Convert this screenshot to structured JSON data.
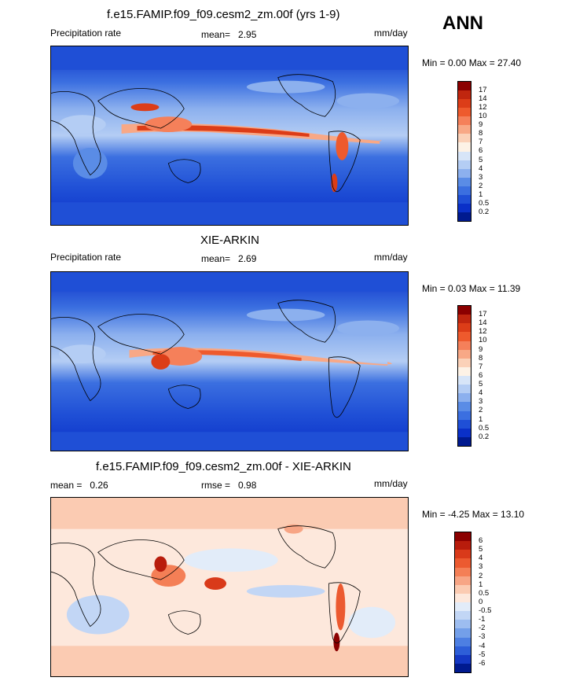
{
  "season": "ANN",
  "panels": [
    {
      "title": "f.e15.FAMIP.f09_f09.cesm2_zm.00f (yrs 1-9)",
      "left_label": "Precipitation rate",
      "stat_label": "mean=",
      "stat_value": "2.95",
      "units": "mm/day",
      "minmax": "Min =   0.00 Max =  27.40",
      "levels": [
        "17",
        "14",
        "12",
        "10",
        "9",
        "8",
        "7",
        "6",
        "5",
        "4",
        "3",
        "2",
        "1",
        "0.5",
        "0.2"
      ],
      "colors": [
        "#8b0000",
        "#c0260f",
        "#dc3d18",
        "#ee5a2d",
        "#f5805a",
        "#f8a886",
        "#fbd1b8",
        "#fdf2e6",
        "#d7e5f8",
        "#b4cdf4",
        "#8cb0ee",
        "#5a8ce6",
        "#3b6fe0",
        "#1f4fd6",
        "#0a30c8",
        "#001a8f"
      ]
    },
    {
      "title": "XIE-ARKIN",
      "left_label": "Precipitation rate",
      "stat_label": "mean=",
      "stat_value": "2.69",
      "units": "mm/day",
      "minmax": "Min =   0.03 Max =  11.39",
      "levels": [
        "17",
        "14",
        "12",
        "10",
        "9",
        "8",
        "7",
        "6",
        "5",
        "4",
        "3",
        "2",
        "1",
        "0.5",
        "0.2"
      ],
      "colors": [
        "#8b0000",
        "#c0260f",
        "#dc3d18",
        "#ee5a2d",
        "#f5805a",
        "#f8a886",
        "#fbd1b8",
        "#fdf2e6",
        "#d7e5f8",
        "#b4cdf4",
        "#8cb0ee",
        "#5a8ce6",
        "#3b6fe0",
        "#1f4fd6",
        "#0a30c8",
        "#001a8f"
      ]
    },
    {
      "title": "f.e15.FAMIP.f09_f09.cesm2_zm.00f - XIE-ARKIN",
      "left_label": "mean =",
      "left_value": "0.26",
      "stat_label": "rmse =",
      "stat_value": "0.98",
      "units": "mm/day",
      "minmax": "Min =  -4.25 Max =  13.10",
      "levels": [
        "6",
        "5",
        "4",
        "3",
        "2",
        "1",
        "0.5",
        "0",
        "-0.5",
        "-1",
        "-2",
        "-3",
        "-4",
        "-5",
        "-6"
      ],
      "colors": [
        "#8b0000",
        "#b81c0c",
        "#d93a1a",
        "#ec5a30",
        "#f47f56",
        "#f7a585",
        "#fbcbb2",
        "#fde8dc",
        "#e2ecf9",
        "#c2d6f5",
        "#9dbdf0",
        "#739fe9",
        "#4d7fe2",
        "#2d5ed8",
        "#1438c4",
        "#001a8f"
      ]
    }
  ]
}
